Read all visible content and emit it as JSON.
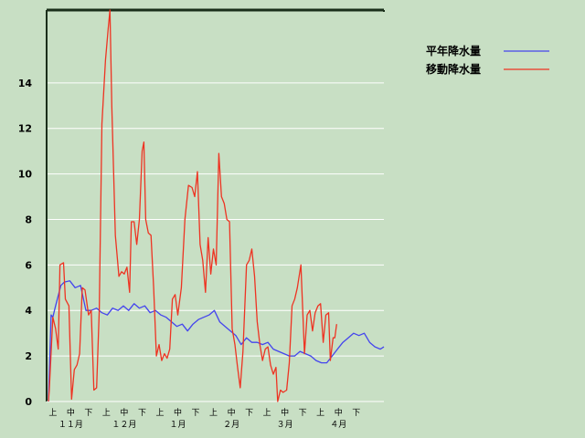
{
  "chart_data": {
    "type": "line",
    "title": "",
    "xlabel": "",
    "ylabel": "",
    "ylim": [
      0,
      17.2
    ],
    "yticks": [
      0,
      2,
      4,
      6,
      8,
      10,
      12,
      14
    ],
    "grid": true,
    "legend_position": "top-right",
    "x_period_labels": [
      "上",
      "中",
      "下",
      "上",
      "中",
      "下",
      "上",
      "中",
      "下",
      "上",
      "中",
      "下",
      "上",
      "中",
      "下",
      "上",
      "中",
      "下"
    ],
    "x_month_labels": [
      "１１月",
      "１２月",
      "１月",
      "２月",
      "３月",
      "４月"
    ],
    "x_unit": "pentad index (6 per month, Nov–Apr)",
    "series": [
      {
        "name": "平年降水量",
        "color": "#4444ee",
        "points": [
          [
            0.1,
            0
          ],
          [
            0.25,
            3.8
          ],
          [
            0.35,
            3.7
          ],
          [
            0.5,
            4.2
          ],
          [
            0.8,
            5.1
          ],
          [
            1.0,
            5.25
          ],
          [
            1.3,
            5.3
          ],
          [
            1.6,
            5.0
          ],
          [
            1.9,
            5.1
          ],
          [
            2.2,
            4.0
          ],
          [
            2.5,
            4.0
          ],
          [
            2.8,
            4.1
          ],
          [
            3.1,
            3.9
          ],
          [
            3.4,
            3.8
          ],
          [
            3.7,
            4.1
          ],
          [
            4.0,
            4.0
          ],
          [
            4.3,
            4.2
          ],
          [
            4.6,
            4.0
          ],
          [
            4.9,
            4.3
          ],
          [
            5.2,
            4.1
          ],
          [
            5.5,
            4.2
          ],
          [
            5.8,
            3.9
          ],
          [
            6.1,
            4.0
          ],
          [
            6.4,
            3.8
          ],
          [
            6.7,
            3.7
          ],
          [
            7.0,
            3.5
          ],
          [
            7.3,
            3.3
          ],
          [
            7.6,
            3.4
          ],
          [
            7.9,
            3.1
          ],
          [
            8.2,
            3.4
          ],
          [
            8.5,
            3.6
          ],
          [
            8.8,
            3.7
          ],
          [
            9.1,
            3.8
          ],
          [
            9.4,
            4.0
          ],
          [
            9.7,
            3.5
          ],
          [
            10.0,
            3.3
          ],
          [
            10.3,
            3.1
          ],
          [
            10.6,
            2.9
          ],
          [
            10.9,
            2.5
          ],
          [
            11.2,
            2.8
          ],
          [
            11.5,
            2.6
          ],
          [
            11.8,
            2.6
          ],
          [
            12.1,
            2.5
          ],
          [
            12.4,
            2.6
          ],
          [
            12.7,
            2.3
          ],
          [
            13.0,
            2.2
          ],
          [
            13.3,
            2.1
          ],
          [
            13.6,
            2.0
          ],
          [
            13.9,
            2.0
          ],
          [
            14.2,
            2.2
          ],
          [
            14.5,
            2.1
          ],
          [
            14.8,
            2.0
          ],
          [
            15.1,
            1.8
          ],
          [
            15.4,
            1.7
          ],
          [
            15.7,
            1.7
          ],
          [
            16.0,
            2.0
          ],
          [
            16.3,
            2.3
          ],
          [
            16.6,
            2.6
          ],
          [
            16.9,
            2.8
          ],
          [
            17.2,
            3.0
          ],
          [
            17.5,
            2.9
          ],
          [
            17.8,
            3.0
          ],
          [
            18.1,
            2.6
          ],
          [
            18.4,
            2.4
          ],
          [
            18.7,
            2.3
          ],
          [
            18.9,
            2.4
          ]
        ]
      },
      {
        "name": "移動降水量",
        "color": "#ee3322",
        "points": [
          [
            0.1,
            0
          ],
          [
            0.15,
            0.5
          ],
          [
            0.35,
            3.7
          ],
          [
            0.5,
            3.2
          ],
          [
            0.65,
            2.3
          ],
          [
            0.75,
            6.0
          ],
          [
            0.95,
            6.1
          ],
          [
            1.05,
            4.5
          ],
          [
            1.25,
            4.2
          ],
          [
            1.4,
            0.1
          ],
          [
            1.55,
            1.4
          ],
          [
            1.7,
            1.6
          ],
          [
            1.85,
            2.1
          ],
          [
            2.0,
            5.0
          ],
          [
            2.15,
            4.9
          ],
          [
            2.35,
            3.8
          ],
          [
            2.5,
            4.0
          ],
          [
            2.65,
            0.5
          ],
          [
            2.8,
            0.6
          ],
          [
            2.95,
            4.0
          ],
          [
            3.1,
            12.2
          ],
          [
            3.3,
            15.0
          ],
          [
            3.45,
            16.4
          ],
          [
            3.55,
            17.2
          ],
          [
            3.65,
            13.0
          ],
          [
            3.85,
            7.3
          ],
          [
            4.05,
            5.5
          ],
          [
            4.2,
            5.7
          ],
          [
            4.35,
            5.6
          ],
          [
            4.5,
            5.9
          ],
          [
            4.65,
            4.8
          ],
          [
            4.75,
            7.9
          ],
          [
            4.9,
            7.9
          ],
          [
            5.05,
            6.9
          ],
          [
            5.2,
            8.0
          ],
          [
            5.35,
            11.0
          ],
          [
            5.45,
            11.4
          ],
          [
            5.55,
            8.0
          ],
          [
            5.7,
            7.4
          ],
          [
            5.85,
            7.3
          ],
          [
            6.0,
            5.0
          ],
          [
            6.15,
            2.0
          ],
          [
            6.3,
            2.5
          ],
          [
            6.45,
            1.8
          ],
          [
            6.6,
            2.1
          ],
          [
            6.75,
            1.9
          ],
          [
            6.9,
            2.3
          ],
          [
            7.05,
            4.5
          ],
          [
            7.2,
            4.7
          ],
          [
            7.35,
            3.8
          ],
          [
            7.55,
            5.0
          ],
          [
            7.75,
            8.0
          ],
          [
            7.95,
            9.5
          ],
          [
            8.15,
            9.4
          ],
          [
            8.3,
            9.0
          ],
          [
            8.45,
            10.1
          ],
          [
            8.6,
            6.9
          ],
          [
            8.75,
            6.2
          ],
          [
            8.9,
            4.8
          ],
          [
            9.05,
            7.2
          ],
          [
            9.2,
            5.6
          ],
          [
            9.35,
            6.7
          ],
          [
            9.5,
            6.0
          ],
          [
            9.65,
            10.9
          ],
          [
            9.8,
            9.0
          ],
          [
            9.95,
            8.7
          ],
          [
            10.1,
            8.0
          ],
          [
            10.25,
            7.9
          ],
          [
            10.4,
            3.2
          ],
          [
            10.55,
            2.5
          ],
          [
            10.7,
            1.5
          ],
          [
            10.85,
            0.6
          ],
          [
            11.0,
            2.2
          ],
          [
            11.2,
            6.0
          ],
          [
            11.35,
            6.2
          ],
          [
            11.5,
            6.7
          ],
          [
            11.65,
            5.5
          ],
          [
            11.8,
            3.5
          ],
          [
            11.95,
            2.5
          ],
          [
            12.1,
            1.8
          ],
          [
            12.25,
            2.3
          ],
          [
            12.4,
            2.4
          ],
          [
            12.55,
            1.6
          ],
          [
            12.7,
            1.2
          ],
          [
            12.85,
            1.5
          ],
          [
            12.95,
            0.0
          ],
          [
            13.1,
            0.5
          ],
          [
            13.25,
            0.4
          ],
          [
            13.45,
            0.5
          ],
          [
            13.6,
            1.7
          ],
          [
            13.75,
            4.2
          ],
          [
            13.9,
            4.5
          ],
          [
            14.05,
            5.0
          ],
          [
            14.25,
            6.0
          ],
          [
            14.45,
            2.1
          ],
          [
            14.6,
            3.8
          ],
          [
            14.75,
            4.0
          ],
          [
            14.9,
            3.1
          ],
          [
            15.05,
            3.9
          ],
          [
            15.2,
            4.2
          ],
          [
            15.35,
            4.3
          ],
          [
            15.5,
            2.6
          ],
          [
            15.65,
            3.8
          ],
          [
            15.8,
            3.9
          ],
          [
            15.9,
            1.8
          ],
          [
            16.05,
            2.8
          ],
          [
            16.15,
            2.8
          ],
          [
            16.25,
            3.4
          ]
        ]
      }
    ]
  }
}
